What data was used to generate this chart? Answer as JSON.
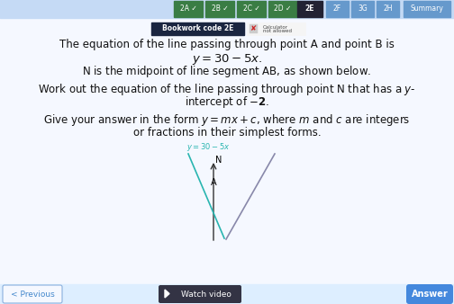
{
  "bg_color": "#ddeeff",
  "tab_labels": [
    "2A",
    "2B",
    "2C",
    "2D",
    "2E",
    "2F",
    "3G",
    "2H",
    "Summary"
  ],
  "tab_active": "2E",
  "tab_checked": [
    "2A",
    "2B",
    "2C",
    "2D"
  ],
  "bookwork_code": "Bookwork code 2E",
  "line1": "The equation of the line passing through point A and point B is",
  "line2_math": "$y = 30 - 5x.$",
  "line3": "N is the midpoint of line segment AB, as shown below.",
  "line4": "Work out the equation of the line passing through point N that has a $y$-",
  "line5": "intercept of $-$",
  "line6": "Give your answer in the form $y = mx + c$, where $m$ and $c$ are integers",
  "line7": "or fractions in their simplest forms.",
  "footer_prev": "< Previous",
  "footer_watch": "Watch video",
  "footer_answer": "Answer",
  "main_text_color": "#111111",
  "teal_color": "#29b5b0",
  "gray_line_color": "#8888aa",
  "active_tab_color": "#222233",
  "checked_tab_color": "#3a7d44",
  "inactive_tab_color": "#6699cc",
  "answer_btn_color": "#4488dd",
  "prev_btn_color": "#e8f0f8",
  "watch_btn_color": "#333344",
  "bookwork_bg": "#1a2540",
  "top_bar_color": "#c5daf5",
  "content_bg": "#f5f8ff"
}
